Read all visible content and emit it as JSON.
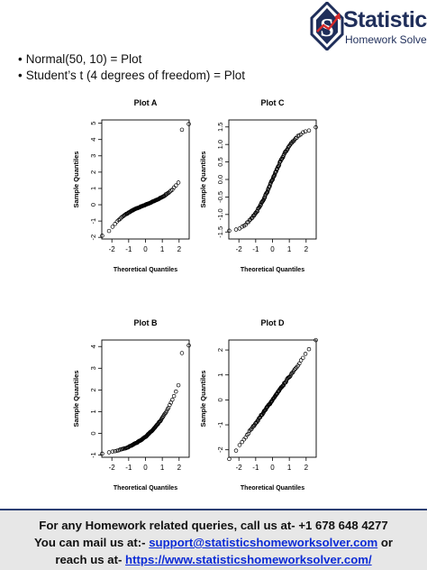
{
  "brand": {
    "name": "Statistics",
    "tagline": "Homework Solver",
    "emblem_letter": "S",
    "color": "#1f2e5a",
    "accent": "#d62a2a"
  },
  "bullets": [
    "Normal(50, 10) = Plot",
    "Student’s t (4 degrees of freedom) = Plot"
  ],
  "chart_data": [
    {
      "type": "scatter",
      "title": "Plot A",
      "xlabel": "Theoretical Quantiles",
      "ylabel": "Sample Quantiles",
      "xlim": [
        -2.6,
        2.6
      ],
      "ylim": [
        -2.1,
        5.2
      ],
      "xticks": [
        -2,
        -1,
        0,
        1,
        2
      ],
      "yticks": [
        -2,
        -1,
        0,
        1,
        2,
        3,
        4,
        5
      ],
      "shape": "heavy-tailed",
      "series": [
        {
          "x": [],
          "y": []
        }
      ]
    },
    {
      "type": "scatter",
      "title": "Plot C",
      "xlabel": "Theoretical Quantiles",
      "ylabel": "Sample Quantiles",
      "xlim": [
        -2.6,
        2.6
      ],
      "ylim": [
        -1.7,
        1.7
      ],
      "xticks": [
        -2,
        -1,
        0,
        1,
        2
      ],
      "yticks": [
        -1.5,
        -1.0,
        -0.5,
        0.0,
        0.5,
        1.0,
        1.5
      ],
      "shape": "light-tailed",
      "series": [
        {
          "x": [],
          "y": []
        }
      ]
    },
    {
      "type": "scatter",
      "title": "Plot B",
      "xlabel": "Theoretical Quantiles",
      "ylabel": "Sample Quantiles",
      "xlim": [
        -2.6,
        2.6
      ],
      "ylim": [
        -1.1,
        4.3
      ],
      "xticks": [
        -2,
        -1,
        0,
        1,
        2
      ],
      "yticks": [
        -1,
        0,
        1,
        2,
        3,
        4
      ],
      "shape": "right-skewed",
      "series": [
        {
          "x": [],
          "y": []
        }
      ]
    },
    {
      "type": "scatter",
      "title": "Plot D",
      "xlabel": "Theoretical Quantiles",
      "ylabel": "Sample Quantiles",
      "xlim": [
        -2.6,
        2.6
      ],
      "ylim": [
        -2.3,
        2.4
      ],
      "xticks": [
        -2,
        -1,
        0,
        1,
        2
      ],
      "yticks": [
        -2,
        -1,
        0,
        1,
        2
      ],
      "shape": "normal",
      "series": [
        {
          "x": [],
          "y": []
        }
      ]
    }
  ],
  "footer": {
    "line1": "For any Homework related queries, call us at- +1 678 648 4277",
    "line2_prefix": "You can mail us at:- ",
    "email": "support@statisticshomeworksolver.com",
    "line2_suffix": " or",
    "line3_prefix": "reach us at- ",
    "url": "https://www.statisticshomeworksolver.com/"
  }
}
